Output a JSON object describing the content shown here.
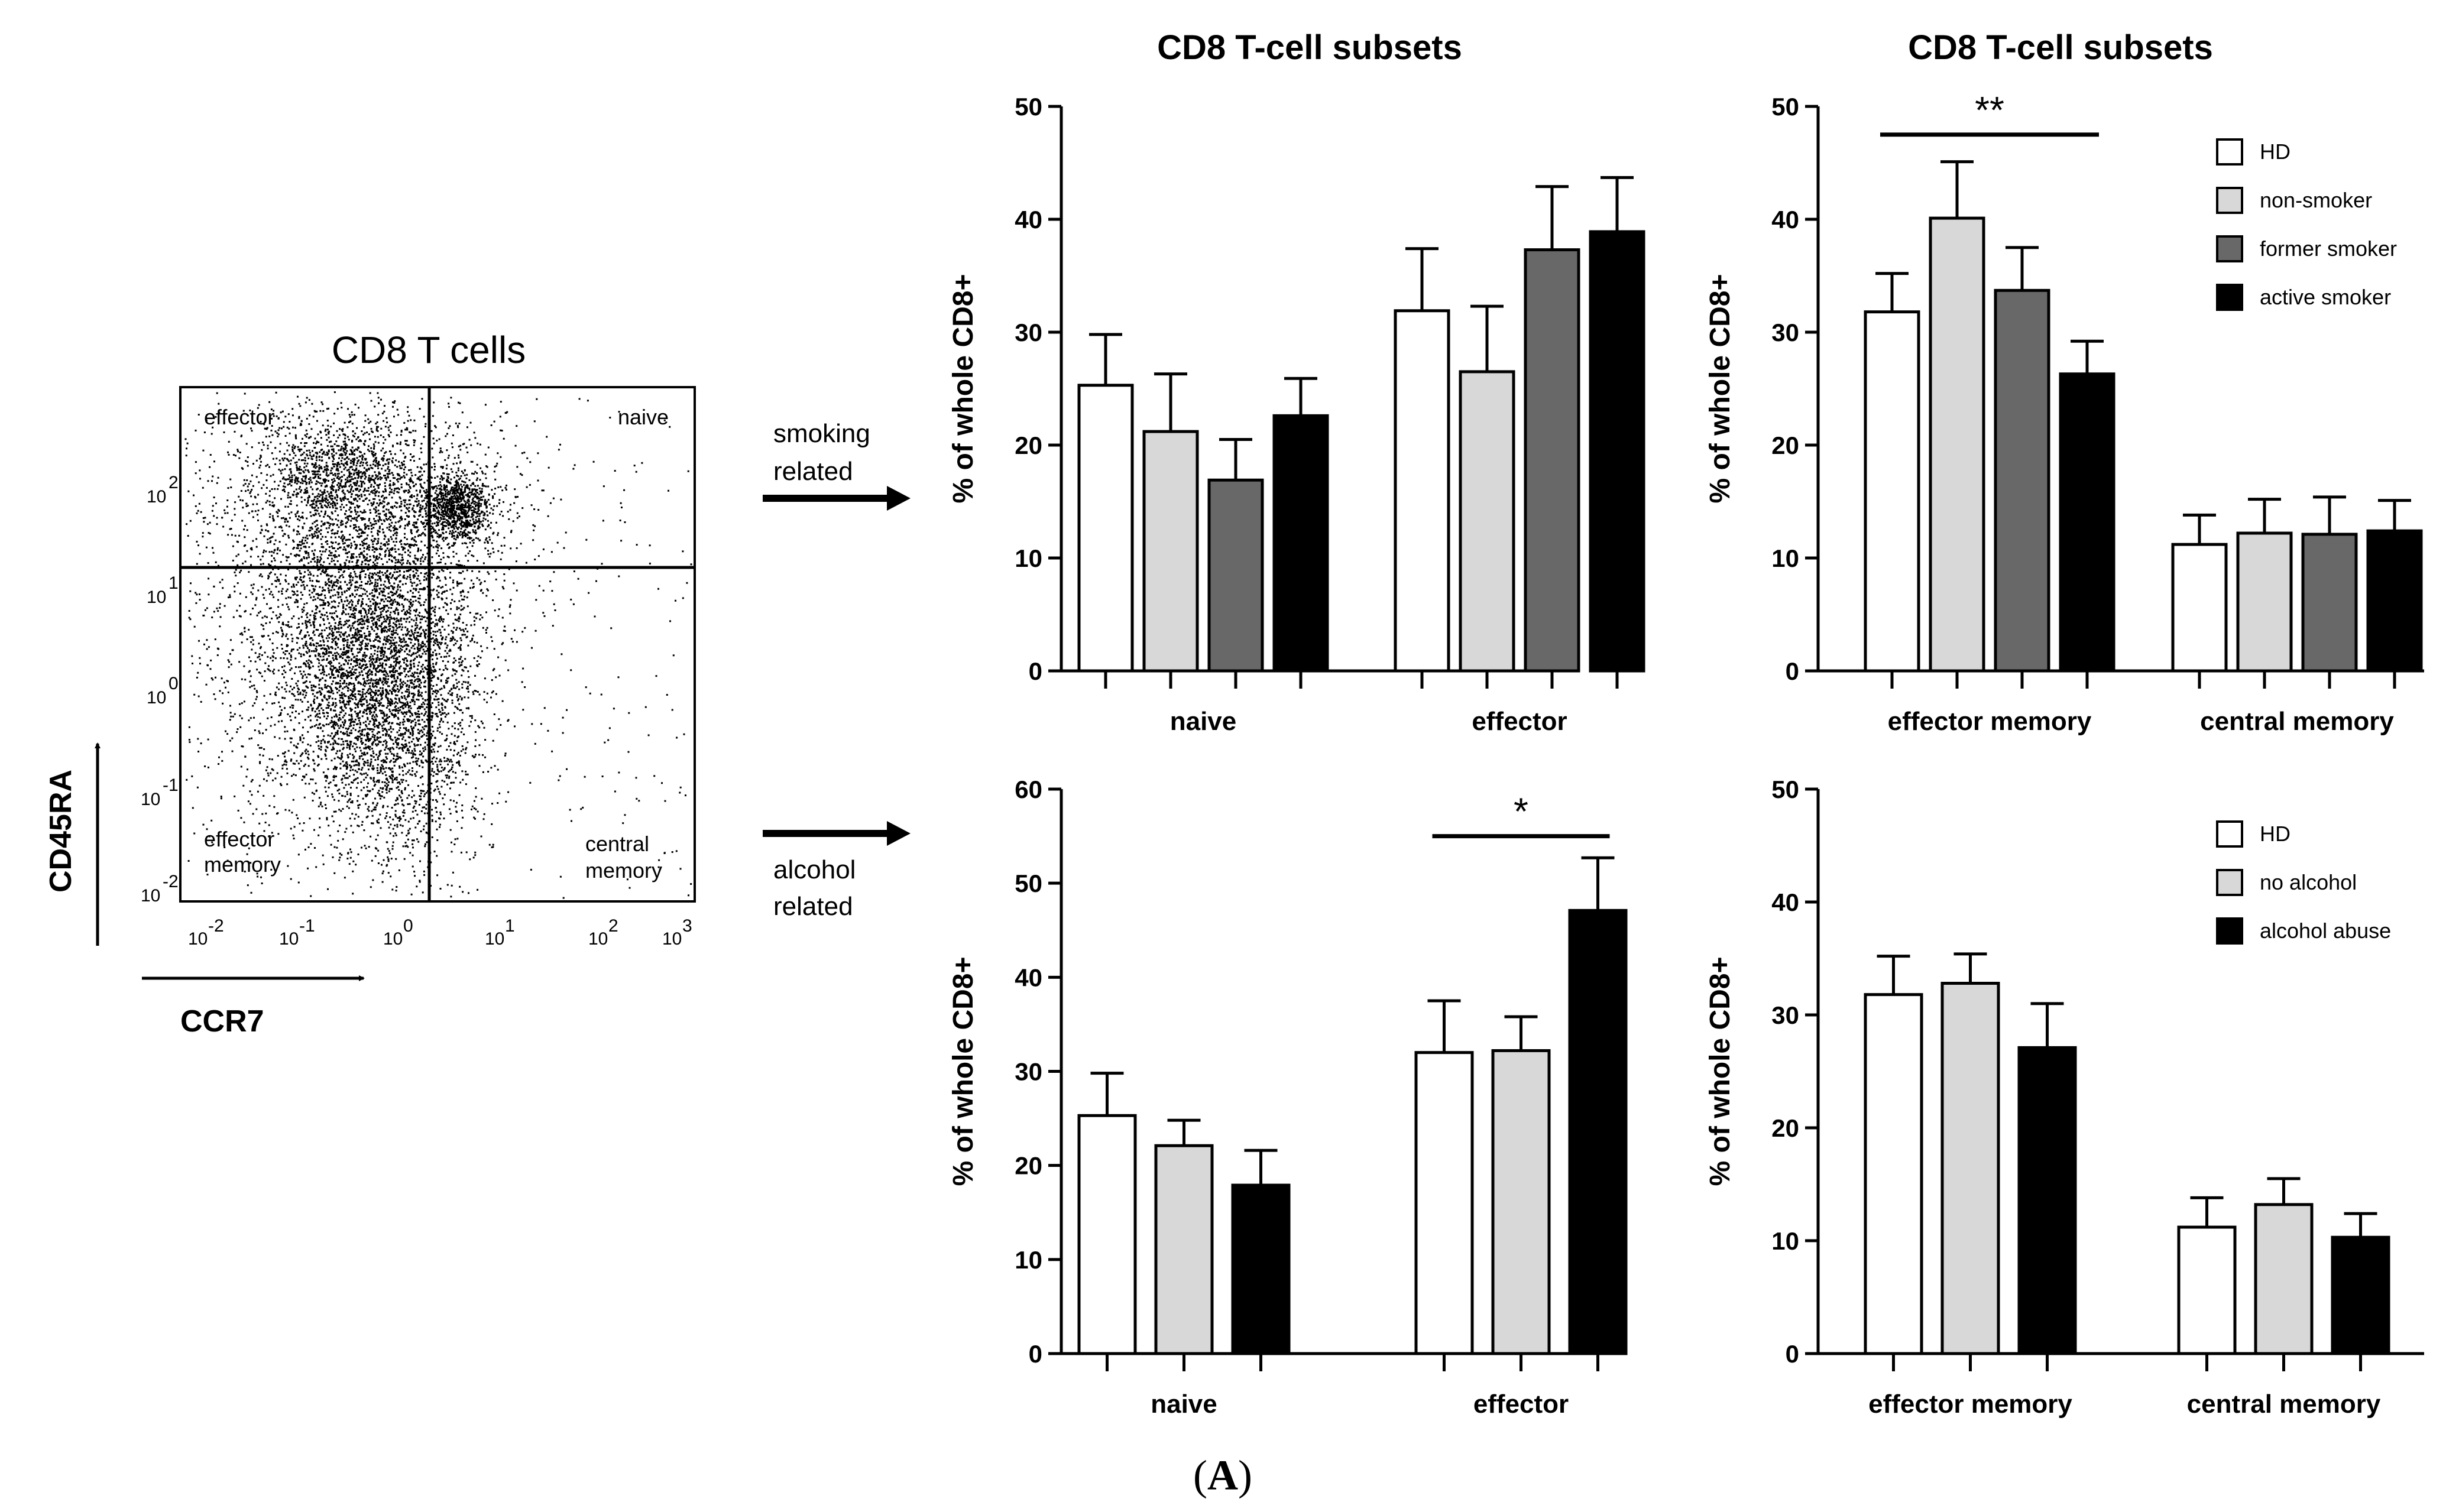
{
  "colors": {
    "HD": "#ffffff",
    "non-smoker": "#d8d8d8",
    "former smoker": "#686868",
    "active smoker": "#000000",
    "no alcohol": "#d8d8d8",
    "alcohol abuse": "#000000",
    "stroke": "#000000"
  },
  "flow": {
    "title": "CD8 T cells",
    "quadrants": {
      "top_left": "effector",
      "top_right": "naive",
      "bottom_left_line1": "effector",
      "bottom_left_line2": "memory",
      "bottom_right_line1": "central",
      "bottom_right_line2": "memory"
    },
    "y_axis_label": "CD45RA",
    "x_axis_label": "CCR7",
    "y_ticks": [
      "10",
      "10",
      "10",
      "10",
      "10"
    ],
    "y_tick_exps": [
      "2",
      "1",
      "0",
      "-1",
      "-2"
    ],
    "x_ticks": [
      "10",
      "10",
      "10",
      "10",
      "10",
      "10"
    ],
    "x_tick_exps": [
      "-2",
      "-1",
      "0",
      "1",
      "2",
      "3"
    ]
  },
  "arrows": {
    "smoking_line1": "smoking",
    "smoking_line2": "related",
    "alcohol_line1": "alcohol",
    "alcohol_line2": "related"
  },
  "column_titles": {
    "left": "CD8  T-cell subsets",
    "right": "CD8  T-cell subsets"
  },
  "panel_label": {
    "open": "(",
    "letter": "A",
    "close": ")"
  },
  "chart_data": [
    {
      "id": "smoking-naive-effector",
      "type": "bar",
      "title": "CD8  T-cell subsets",
      "ylabel": "% of whole CD8+",
      "xlabel": "",
      "ylim": [
        0,
        50
      ],
      "yticks": [
        0,
        10,
        20,
        30,
        40,
        50
      ],
      "categories": [
        "naive",
        "effector"
      ],
      "series": [
        {
          "name": "HD",
          "values": [
            25.3,
            31.9
          ],
          "errors": [
            4.5,
            5.5
          ]
        },
        {
          "name": "non-smoker",
          "values": [
            21.2,
            26.5
          ],
          "errors": [
            5.1,
            5.8
          ]
        },
        {
          "name": "former smoker",
          "values": [
            16.9,
            37.3
          ],
          "errors": [
            3.6,
            5.6
          ]
        },
        {
          "name": "active smoker",
          "values": [
            22.6,
            38.9
          ],
          "errors": [
            3.3,
            4.8
          ]
        }
      ],
      "significance": [],
      "legend": false
    },
    {
      "id": "smoking-memory",
      "type": "bar",
      "title": "CD8  T-cell subsets",
      "ylabel": "% of whole CD8+",
      "xlabel": "",
      "ylim": [
        0,
        50
      ],
      "yticks": [
        0,
        10,
        20,
        30,
        40,
        50
      ],
      "categories": [
        "effector memory",
        "central memory"
      ],
      "series": [
        {
          "name": "HD",
          "values": [
            31.8,
            11.2
          ],
          "errors": [
            3.4,
            2.6
          ]
        },
        {
          "name": "non-smoker",
          "values": [
            40.1,
            12.2
          ],
          "errors": [
            5.0,
            3.0
          ]
        },
        {
          "name": "former smoker",
          "values": [
            33.7,
            12.1
          ],
          "errors": [
            3.8,
            3.3
          ]
        },
        {
          "name": "active smoker",
          "values": [
            26.3,
            12.4
          ],
          "errors": [
            2.9,
            2.7
          ]
        }
      ],
      "significance": [
        {
          "label": "**",
          "from_category": 0,
          "from_series": 0,
          "to_category": 0,
          "to_series": 3,
          "y": 47.5
        }
      ],
      "legend": true,
      "legend_position": "top-right"
    },
    {
      "id": "alcohol-naive-effector",
      "type": "bar",
      "title": "",
      "ylabel": "% of whole CD8+",
      "xlabel": "",
      "ylim": [
        0,
        60
      ],
      "yticks": [
        0,
        10,
        20,
        30,
        40,
        50,
        60
      ],
      "categories": [
        "naive",
        "effector"
      ],
      "series": [
        {
          "name": "HD",
          "values": [
            25.3,
            32.0
          ],
          "errors": [
            4.5,
            5.5
          ]
        },
        {
          "name": "no alcohol",
          "values": [
            22.1,
            32.2
          ],
          "errors": [
            2.7,
            3.6
          ]
        },
        {
          "name": "alcohol abuse",
          "values": [
            17.9,
            47.1
          ],
          "errors": [
            3.7,
            5.6
          ]
        }
      ],
      "significance": [
        {
          "label": "*",
          "from_category": 1,
          "from_series": 0,
          "to_category": 1,
          "to_series": 2,
          "y": 55.0
        }
      ],
      "legend": false
    },
    {
      "id": "alcohol-memory",
      "type": "bar",
      "title": "",
      "ylabel": "% of whole CD8+",
      "xlabel": "",
      "ylim": [
        0,
        50
      ],
      "yticks": [
        0,
        10,
        20,
        30,
        40,
        50
      ],
      "categories": [
        "effector memory",
        "central memory"
      ],
      "series": [
        {
          "name": "HD",
          "values": [
            31.8,
            11.2
          ],
          "errors": [
            3.4,
            2.6
          ]
        },
        {
          "name": "no alcohol",
          "values": [
            32.8,
            13.2
          ],
          "errors": [
            2.6,
            2.3
          ]
        },
        {
          "name": "alcohol abuse",
          "values": [
            27.1,
            10.3
          ],
          "errors": [
            3.9,
            2.1
          ]
        }
      ],
      "significance": [],
      "legend": true,
      "legend_position": "top-right"
    }
  ]
}
